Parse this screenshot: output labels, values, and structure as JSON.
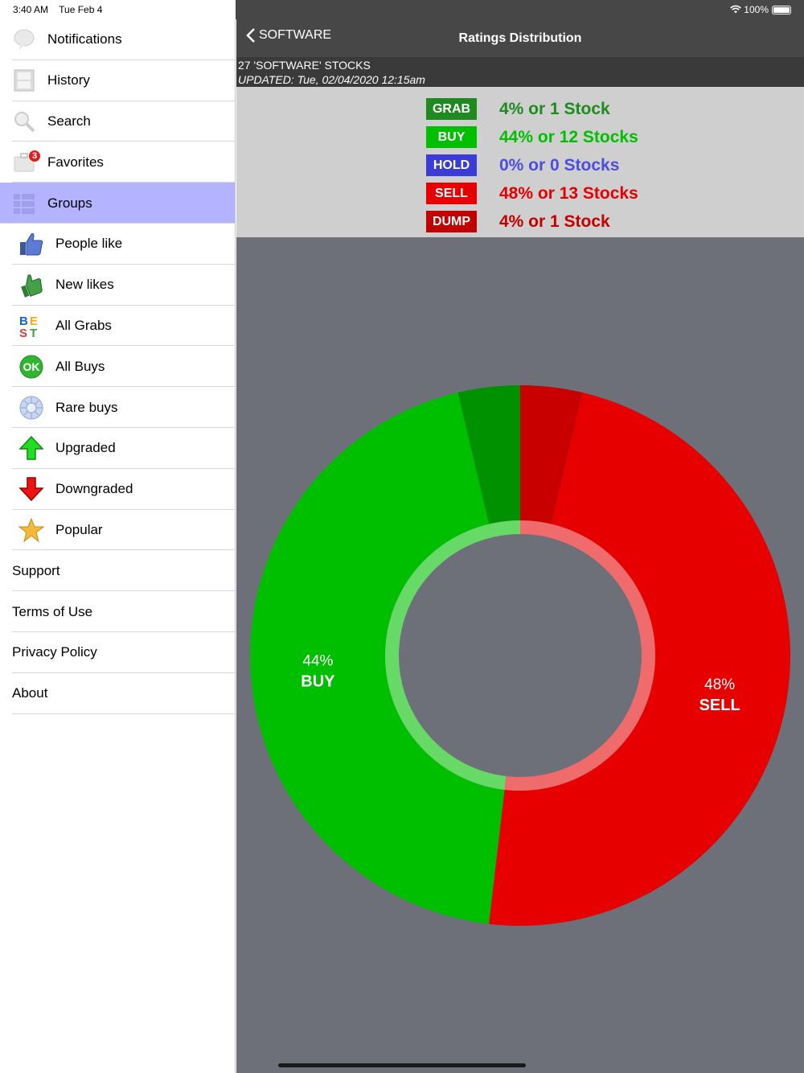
{
  "status": {
    "time": "3:40 AM",
    "date": "Tue Feb 4",
    "battery": "100%"
  },
  "sidebar": {
    "top_items": [
      {
        "label": "Notifications",
        "icon": "chat-bubble-icon"
      },
      {
        "label": "History",
        "icon": "film-strip-icon"
      },
      {
        "label": "Search",
        "icon": "magnifier-icon"
      },
      {
        "label": "Favorites",
        "icon": "briefcase-icon",
        "badge": "3"
      },
      {
        "label": "Groups",
        "icon": "list-icon",
        "selected": true
      }
    ],
    "sub_items": [
      {
        "label": "People like",
        "icon": "thumbs-up-icon"
      },
      {
        "label": "New likes",
        "icon": "green-thumbs-up-icon"
      },
      {
        "label": "All Grabs",
        "icon": "best-icon"
      },
      {
        "label": "All Buys",
        "icon": "ok-icon"
      },
      {
        "label": "Rare buys",
        "icon": "diamond-icon"
      },
      {
        "label": "Upgraded",
        "icon": "arrow-up-icon"
      },
      {
        "label": "Downgraded",
        "icon": "arrow-down-icon"
      },
      {
        "label": "Popular",
        "icon": "star-icon"
      }
    ],
    "bottom_items": [
      {
        "label": "Support"
      },
      {
        "label": "Terms of Use"
      },
      {
        "label": "Privacy Policy"
      },
      {
        "label": "About"
      }
    ]
  },
  "navbar": {
    "back_label": "SOFTWARE",
    "title": "Ratings Distribution"
  },
  "info": {
    "count_line": "27 'SOFTWARE' STOCKS",
    "updated_line": "UPDATED: Tue, 02/04/2020 12:15am"
  },
  "legend": [
    {
      "badge": "GRAB",
      "text": "4% or 1 Stock",
      "badge_color": "#1f8a1f",
      "text_color": "#1f8a1f"
    },
    {
      "badge": "BUY",
      "text": "44% or 12 Stocks",
      "badge_color": "#00bf00",
      "text_color": "#00bf00"
    },
    {
      "badge": "HOLD",
      "text": "0% or 0 Stocks",
      "badge_color": "#3b3bd6",
      "text_color": "#4d4de0"
    },
    {
      "badge": "SELL",
      "text": "48% or 13 Stocks",
      "badge_color": "#e60000",
      "text_color": "#e60000"
    },
    {
      "badge": "DUMP",
      "text": "4% or 1 Stock",
      "badge_color": "#c20000",
      "text_color": "#c20000"
    }
  ],
  "chart_data": {
    "type": "pie",
    "categories": [
      "DUMP",
      "SELL",
      "HOLD",
      "BUY",
      "GRAB"
    ],
    "values": [
      1,
      13,
      0,
      12,
      1
    ],
    "colors": [
      "#c90000",
      "#e60000",
      "#3b3bd6",
      "#00bf00",
      "#009100"
    ],
    "slice_labels": [
      {
        "category": "SELL",
        "pct": "48%",
        "name": "SELL"
      },
      {
        "category": "BUY",
        "pct": "44%",
        "name": "BUY"
      }
    ],
    "inner_ring": {
      "left_color": "#66d966",
      "right_color": "#f06b6b"
    }
  }
}
